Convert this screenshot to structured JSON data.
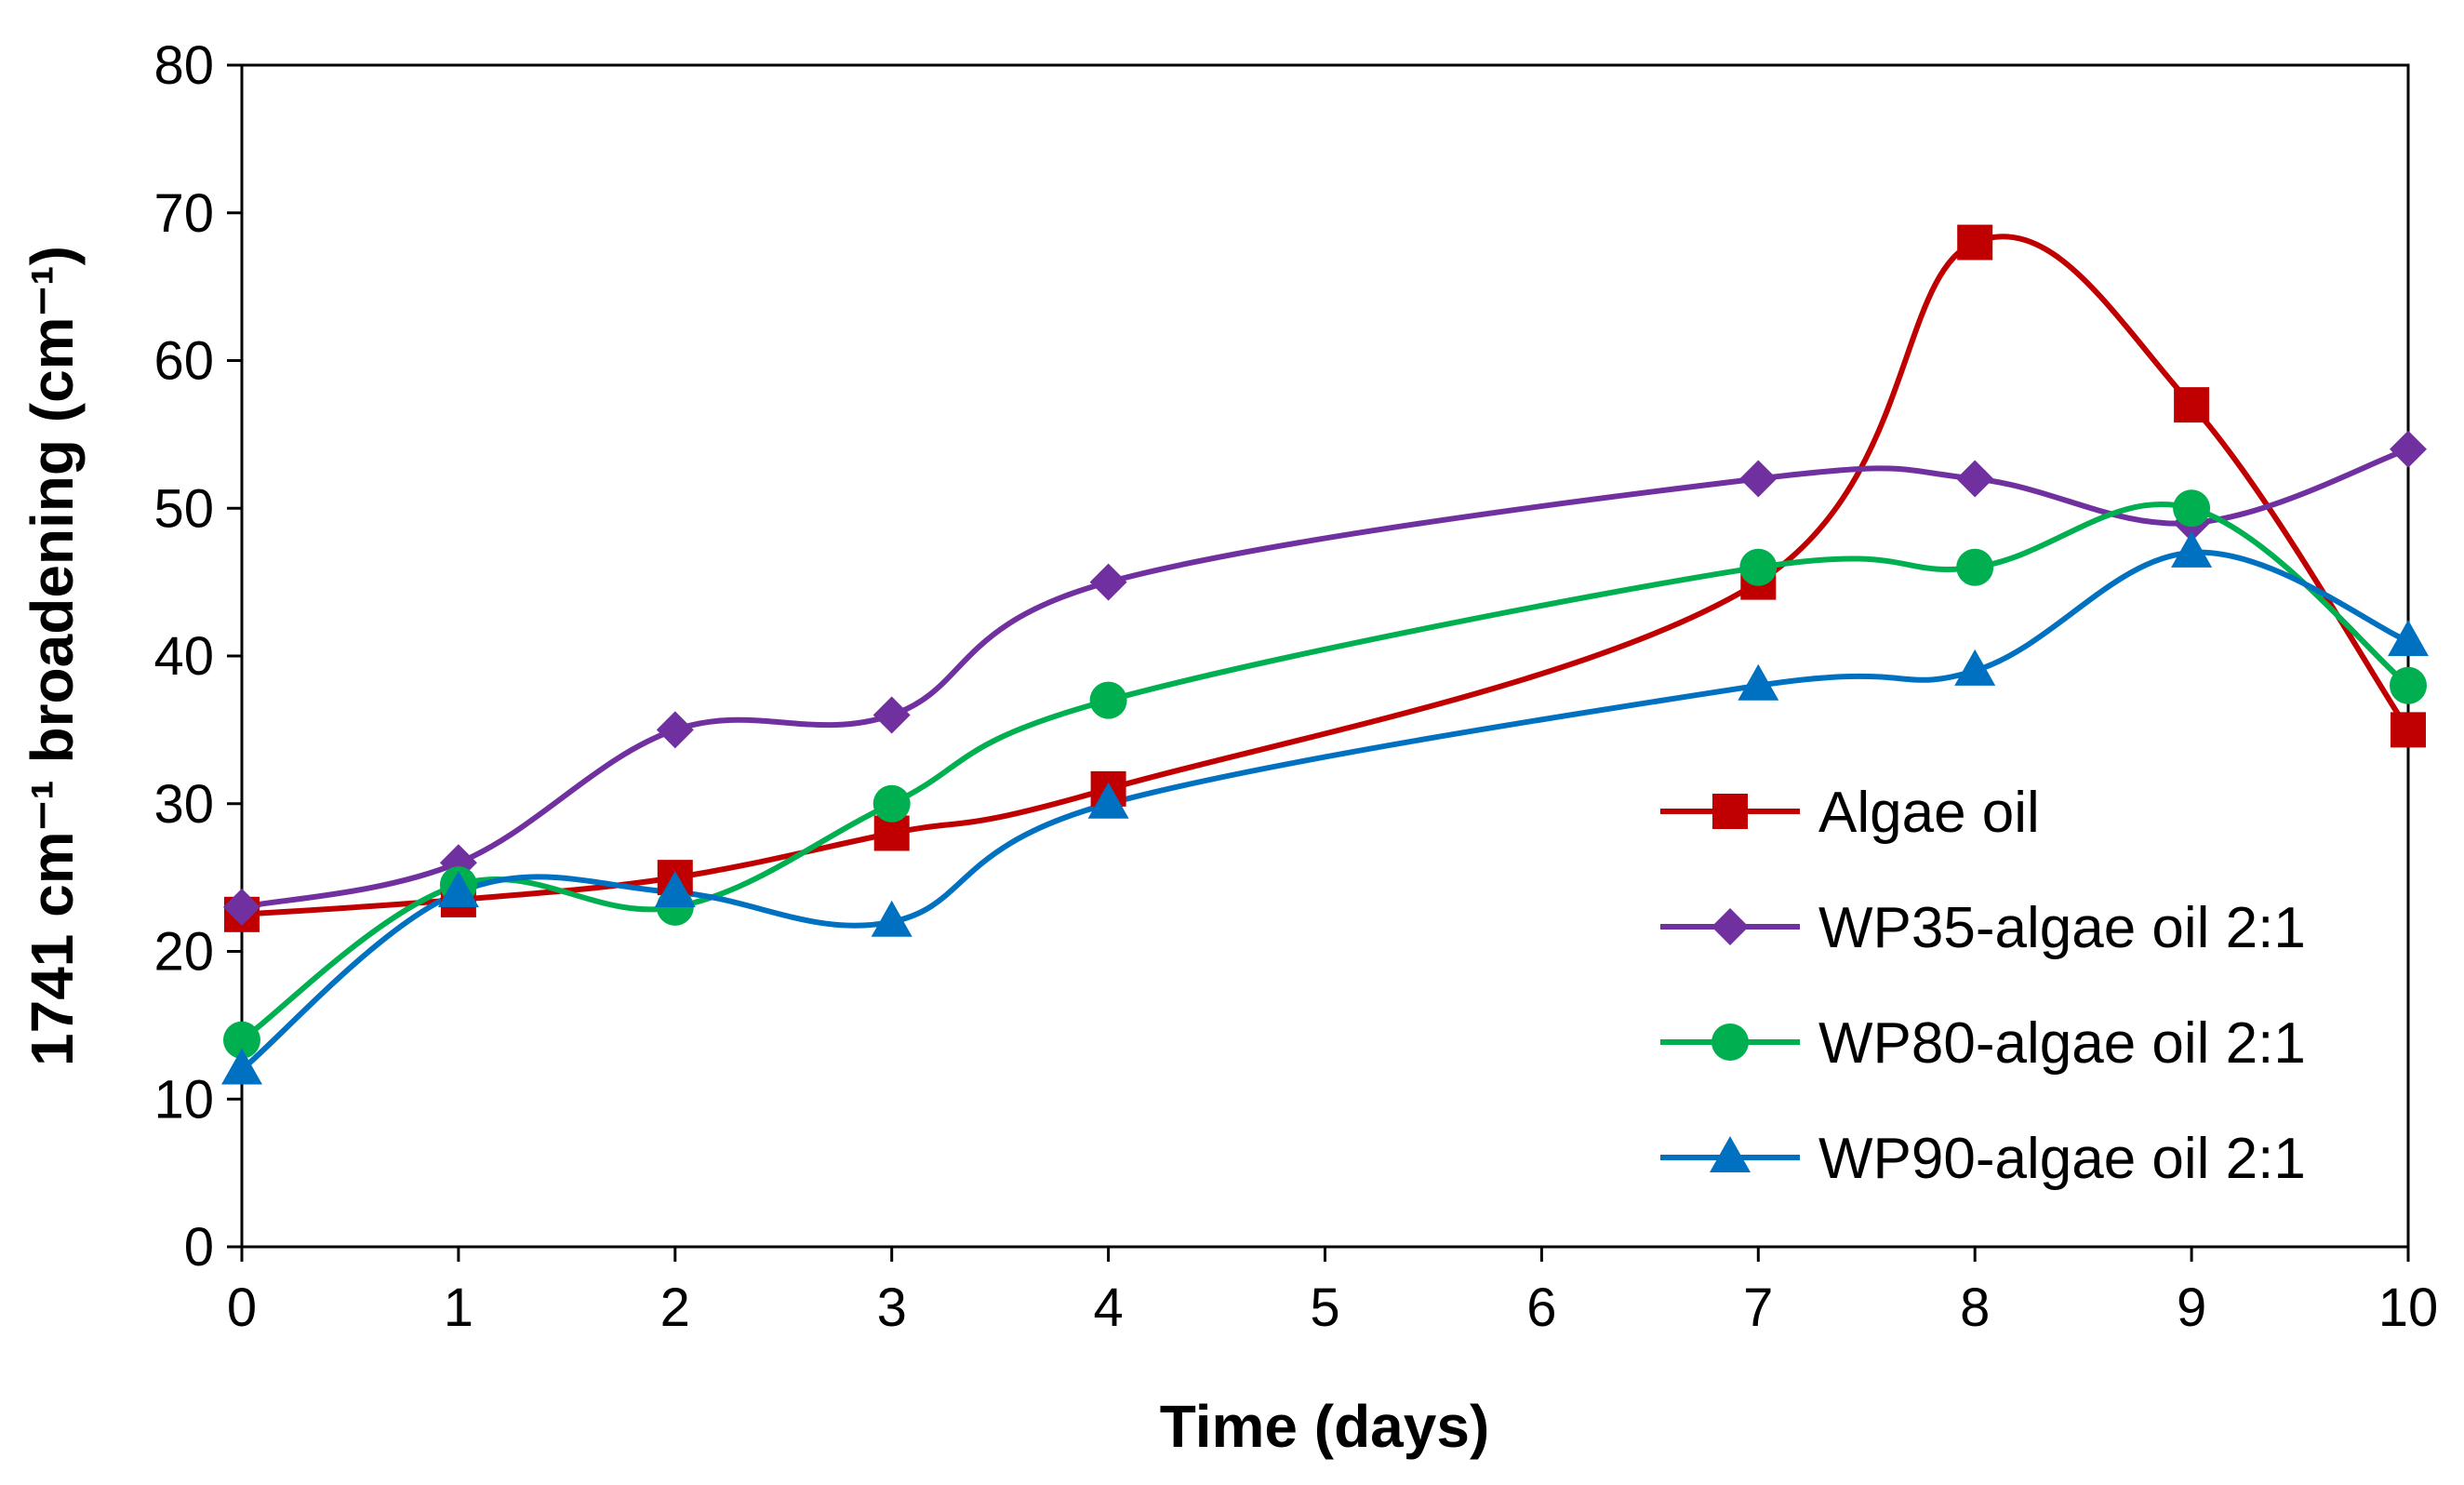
{
  "chart_data": {
    "type": "line",
    "title": "",
    "xlabel": "Time (days)",
    "ylabel": "1741 cm⁻¹ broadening (cm⁻¹)",
    "xlim": [
      0,
      10
    ],
    "ylim": [
      0,
      80
    ],
    "xticks": [
      0,
      1,
      2,
      3,
      4,
      5,
      6,
      7,
      8,
      9,
      10
    ],
    "yticks": [
      0,
      10,
      20,
      30,
      40,
      50,
      60,
      70,
      80
    ],
    "x": [
      0,
      1,
      2,
      3,
      4,
      7,
      8,
      9,
      10
    ],
    "smoothed": true,
    "grid": false,
    "legend_position": "right",
    "series": [
      {
        "name": "Algae oil",
        "color": "#c00000",
        "marker": "square",
        "values": [
          22.5,
          23.5,
          25,
          28,
          31,
          45,
          68,
          57,
          35
        ]
      },
      {
        "name": "WP35-algae oil 2:1",
        "color": "#7030a0",
        "marker": "diamond",
        "values": [
          23,
          26,
          35,
          36,
          45,
          52,
          52,
          49,
          54
        ]
      },
      {
        "name": "WP80-algae oil 2:1",
        "color": "#00b050",
        "marker": "circle",
        "values": [
          14,
          24.5,
          23,
          30,
          37,
          46,
          46,
          50,
          38
        ]
      },
      {
        "name": "WP90-algae oil 2:1",
        "color": "#0070c0",
        "marker": "triangle",
        "values": [
          12,
          24,
          24,
          22,
          30,
          38,
          39,
          47,
          41
        ]
      }
    ]
  }
}
